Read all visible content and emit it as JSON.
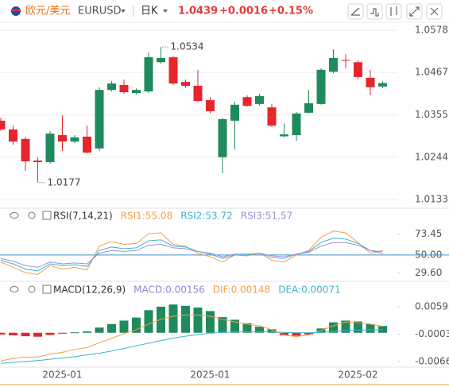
{
  "header": {
    "name": "欧元/美元",
    "symbol": "EURUSD",
    "period": "日K",
    "price": "1.0439",
    "change": "+0.0016",
    "change_pct": "+0.15%"
  },
  "chart_data": [
    {
      "type": "candlestick",
      "categories": [
        null,
        null,
        null,
        null,
        null,
        "2025-01",
        null,
        null,
        null,
        null,
        null,
        null,
        null,
        null,
        null,
        null,
        null,
        "2025-01",
        null,
        null,
        null,
        null,
        null,
        null,
        null,
        null,
        null,
        null,
        null,
        "2025-02",
        null,
        null
      ],
      "open": [
        1.034,
        1.0317,
        1.0292,
        1.0235,
        1.0231,
        1.0302,
        1.0285,
        1.0298,
        1.0267,
        1.0421,
        1.0434,
        1.0413,
        1.0417,
        1.0494,
        1.0507,
        1.0442,
        1.0432,
        1.0394,
        1.0244,
        1.034,
        1.0402,
        1.0384,
        1.0375,
        1.0299,
        1.0302,
        1.0361,
        1.0384,
        1.0469,
        1.05,
        1.0494,
        1.0453,
        1.043
      ],
      "high": [
        1.0348,
        1.0327,
        1.0298,
        1.0244,
        1.0313,
        1.0354,
        1.0302,
        1.0327,
        1.0428,
        1.0444,
        1.0448,
        1.0425,
        1.052,
        1.0534,
        1.0511,
        1.0448,
        1.0474,
        1.0402,
        1.0348,
        1.039,
        1.0407,
        1.0411,
        1.0384,
        1.0333,
        1.0363,
        1.0421,
        1.0478,
        1.0528,
        1.0515,
        1.0498,
        1.0474,
        1.0444
      ],
      "low": [
        1.0313,
        1.0277,
        1.0208,
        1.0177,
        1.0227,
        1.026,
        1.0281,
        1.0254,
        1.026,
        1.0417,
        1.0411,
        1.0409,
        1.0413,
        1.049,
        1.0434,
        1.0428,
        1.0388,
        1.0359,
        1.0202,
        1.0264,
        1.0376,
        1.038,
        1.0323,
        1.0296,
        1.0287,
        1.0359,
        1.0382,
        1.0465,
        1.0478,
        1.0449,
        1.0407,
        1.0426
      ],
      "close": [
        1.0317,
        1.0285,
        1.0233,
        1.0231,
        1.0306,
        1.0285,
        1.0296,
        1.0256,
        1.0421,
        1.0438,
        1.0415,
        1.0421,
        1.0507,
        1.0505,
        1.0438,
        1.0432,
        1.0392,
        1.0365,
        1.0344,
        1.0382,
        1.0379,
        1.0405,
        1.0327,
        1.0304,
        1.0359,
        1.0386,
        1.0474,
        1.0505,
        1.0498,
        1.0455,
        1.0428,
        1.0439
      ],
      "up_color": "#1f8a5b",
      "down_color": "#e5262d",
      "ylim": [
        1.0118,
        1.0595
      ],
      "yticks": [
        1.0578,
        1.0467,
        1.0355,
        1.0244,
        1.0133
      ],
      "grid": true
    },
    {
      "type": "line",
      "title": "RSI(7,14,21)",
      "series": [
        {
          "name": "RSI1:55.08",
          "color": "#f5a04a",
          "values": [
            42,
            36,
            30,
            28,
            38,
            34,
            36,
            33,
            60,
            65,
            62,
            63,
            74,
            75,
            62,
            60,
            52,
            48,
            42,
            50,
            49,
            52,
            44,
            42,
            50,
            55,
            70,
            77,
            75,
            64,
            52,
            55.08
          ]
        },
        {
          "name": "RSI2:53.72",
          "color": "#3cb4d0",
          "values": [
            44,
            40,
            34,
            32,
            40,
            38,
            39,
            37,
            55,
            59,
            57,
            58,
            66,
            67,
            60,
            59,
            54,
            51,
            46,
            50,
            50,
            52,
            47,
            46,
            51,
            54,
            64,
            69,
            68,
            63,
            55,
            53.72
          ]
        },
        {
          "name": "RSI3:51.57",
          "color": "#9d8fd8",
          "values": [
            46,
            43,
            38,
            36,
            42,
            40,
            41,
            40,
            52,
            55,
            54,
            55,
            61,
            62,
            58,
            57,
            54,
            52,
            48,
            51,
            51,
            52,
            49,
            48,
            51,
            53,
            60,
            64,
            64,
            61,
            55,
            51.57
          ]
        }
      ],
      "ylim": [
        22,
        84
      ],
      "yticks": [
        73.45,
        {
          "value": 50,
          "label": "50.00"
        },
        {
          "value": 29.6,
          "label": "29.60"
        }
      ],
      "ref_line": {
        "value": 50,
        "color": "#3c8fc8"
      }
    },
    {
      "type": "macd",
      "title": "MACD(12,26,9)",
      "series": [
        {
          "name": "MACD:0.00156",
          "type": "bar",
          "color": "#9b7fd4",
          "values": [
            -0.0004,
            -0.0006,
            -0.0008,
            -0.0009,
            -0.0005,
            -0.0002,
            0.0001,
            0.0003,
            0.0012,
            0.002,
            0.0028,
            0.0035,
            0.0052,
            0.006,
            0.0065,
            0.0062,
            0.0058,
            0.005,
            0.0036,
            0.003,
            0.0022,
            0.0014,
            0.0008,
            -0.0006,
            -0.0007,
            -0.0004,
            0.001,
            0.0024,
            0.0028,
            0.0026,
            0.002,
            0.00156
          ]
        },
        {
          "name": "DIF:0.00148",
          "type": "line",
          "color": "#f5a04a",
          "values": [
            -0.0065,
            -0.0059,
            -0.0056,
            -0.0056,
            -0.0049,
            -0.0045,
            -0.0038,
            -0.0034,
            -0.0023,
            -0.0013,
            -0.0002,
            0.0007,
            0.002,
            0.0031,
            0.0038,
            0.0041,
            0.0041,
            0.0038,
            0.0031,
            0.0025,
            0.002,
            0.0016,
            0.0007,
            -0.0005,
            -0.0009,
            -0.0005,
            0.0005,
            0.0016,
            0.0025,
            0.0023,
            0.002,
            0.00148
          ]
        },
        {
          "name": "DEA:0.00071",
          "type": "line",
          "color": "#3cb4d0",
          "values": [
            -0.007,
            -0.0068,
            -0.0066,
            -0.0064,
            -0.0061,
            -0.0058,
            -0.0055,
            -0.0051,
            -0.0047,
            -0.0042,
            -0.0036,
            -0.003,
            -0.0024,
            -0.0018,
            -0.0012,
            -0.0008,
            -0.0004,
            -0.0001,
            0.0001,
            0.0002,
            0.0002,
            0.0002,
            0.0002,
            0.0001,
            0.0,
            0.0,
            0.0001,
            0.0003,
            0.0005,
            0.0006,
            0.0007,
            0.00071
          ]
        }
      ],
      "up_color": "#1f8a5b",
      "down_color": "#e5262d",
      "ylim": [
        -0.0079,
        0.008
      ],
      "yticks": [
        0.00598,
        -0.00032,
        -0.00661
      ]
    }
  ]
}
